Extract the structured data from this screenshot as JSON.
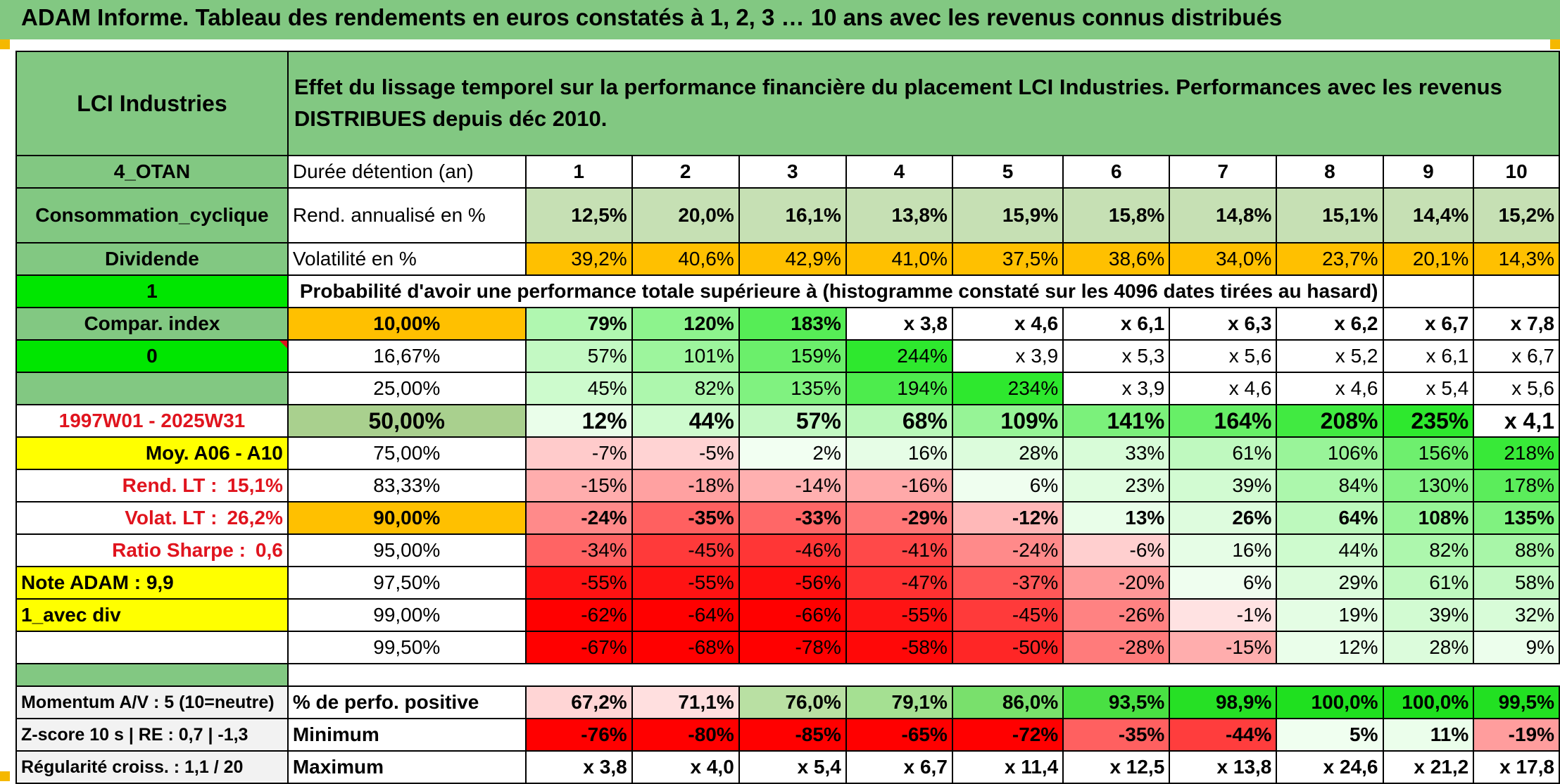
{
  "title": "ADAM Informe. Tableau des rendements en euros constatés à 1, 2, 3 … 10 ans avec les revenus connus distribués",
  "header": {
    "fund_name": "LCI Industries",
    "description": "Effet du lissage temporel sur la performance financière du placement LCI Industries. Performances avec les revenus DISTRIBUES depuis déc 2010."
  },
  "side": {
    "otan": "4_OTAN",
    "sector": "Consommation_cyclique",
    "dividend": "Dividende",
    "one": "1",
    "compar_index": "Compar. index",
    "zero": "0",
    "period": "1997W01 - 2025W31",
    "moy": "Moy. A06 - A10",
    "rend_lt_label": "Rend. LT :",
    "rend_lt_value": "15,1%",
    "volat_lt_label": "Volat. LT :",
    "volat_lt_value": "26,2%",
    "sharpe_label": "Ratio Sharpe :",
    "sharpe_value": "0,6",
    "note": "Note ADAM : 9,9",
    "avec_div": "1_avec div"
  },
  "durations_label": "Durée détention (an)",
  "durations": [
    "1",
    "2",
    "3",
    "4",
    "5",
    "6",
    "7",
    "8",
    "9",
    "10"
  ],
  "rend_label": "Rend. annualisé en %",
  "rend": [
    "12,5%",
    "20,0%",
    "16,1%",
    "13,8%",
    "15,9%",
    "15,8%",
    "14,8%",
    "15,1%",
    "14,4%",
    "15,2%"
  ],
  "vol_label": "Volatilité en %",
  "vol": [
    "39,2%",
    "40,6%",
    "42,9%",
    "41,0%",
    "37,5%",
    "38,6%",
    "34,0%",
    "23,7%",
    "20,1%",
    "14,3%"
  ],
  "prob_title": "Probabilité d'avoir une performance totale supérieure à (histogramme constaté sur les 4096 dates tirées au hasard)",
  "prob_rows": [
    {
      "pct": "10,00%",
      "vals": [
        "79%",
        "120%",
        "183%",
        "x 3,8",
        "x 4,6",
        "x 6,1",
        "x 6,3",
        "x 6,2",
        "x 6,7",
        "x 7,8"
      ]
    },
    {
      "pct": "16,67%",
      "vals": [
        "57%",
        "101%",
        "159%",
        "244%",
        "x 3,9",
        "x 5,3",
        "x 5,6",
        "x 5,2",
        "x 6,1",
        "x 6,7"
      ]
    },
    {
      "pct": "25,00%",
      "vals": [
        "45%",
        "82%",
        "135%",
        "194%",
        "234%",
        "x 3,9",
        "x 4,6",
        "x 4,6",
        "x 5,4",
        "x 5,6"
      ]
    },
    {
      "pct": "50,00%",
      "vals": [
        "12%",
        "44%",
        "57%",
        "68%",
        "109%",
        "141%",
        "164%",
        "208%",
        "235%",
        "x 4,1"
      ]
    },
    {
      "pct": "75,00%",
      "vals": [
        "-7%",
        "-5%",
        "2%",
        "16%",
        "28%",
        "33%",
        "61%",
        "106%",
        "156%",
        "218%"
      ]
    },
    {
      "pct": "83,33%",
      "vals": [
        "-15%",
        "-18%",
        "-14%",
        "-16%",
        "6%",
        "23%",
        "39%",
        "84%",
        "130%",
        "178%"
      ]
    },
    {
      "pct": "90,00%",
      "vals": [
        "-24%",
        "-35%",
        "-33%",
        "-29%",
        "-12%",
        "13%",
        "26%",
        "64%",
        "108%",
        "135%"
      ]
    },
    {
      "pct": "95,00%",
      "vals": [
        "-34%",
        "-45%",
        "-46%",
        "-41%",
        "-24%",
        "-6%",
        "16%",
        "44%",
        "82%",
        "88%"
      ]
    },
    {
      "pct": "97,50%",
      "vals": [
        "-55%",
        "-55%",
        "-56%",
        "-47%",
        "-37%",
        "-20%",
        "6%",
        "29%",
        "61%",
        "58%"
      ]
    },
    {
      "pct": "99,00%",
      "vals": [
        "-62%",
        "-64%",
        "-66%",
        "-55%",
        "-45%",
        "-26%",
        "-1%",
        "19%",
        "39%",
        "32%"
      ]
    },
    {
      "pct": "99,50%",
      "vals": [
        "-67%",
        "-68%",
        "-78%",
        "-58%",
        "-50%",
        "-28%",
        "-15%",
        "12%",
        "28%",
        "9%"
      ]
    }
  ],
  "summary": [
    {
      "side": "Momentum A/V : 5 (10=neutre)",
      "label": "% de perfo. positive",
      "vals": [
        "67,2%",
        "71,1%",
        "76,0%",
        "79,1%",
        "86,0%",
        "93,5%",
        "98,9%",
        "100,0%",
        "100,0%",
        "99,5%"
      ]
    },
    {
      "side": "Z-score 10 s | RE : 0,7 | -1,3",
      "label": "Minimum",
      "vals": [
        "-76%",
        "-80%",
        "-85%",
        "-65%",
        "-72%",
        "-35%",
        "-44%",
        "5%",
        "11%",
        "-19%"
      ]
    },
    {
      "side": "Régularité croiss. : 1,1 / 20",
      "label": "Maximum",
      "vals": [
        "x 3,8",
        "x 4,0",
        "x 5,4",
        "x 6,7",
        "x 11,4",
        "x 12,5",
        "x 13,8",
        "x 24,6",
        "x 21,2",
        "x 17,8"
      ]
    }
  ],
  "colors": {
    "header_green": "#82c882",
    "bright_green": "#00e600",
    "yellow": "#ffff00",
    "orange": "#ffc000",
    "label_red": "#e0141e"
  }
}
